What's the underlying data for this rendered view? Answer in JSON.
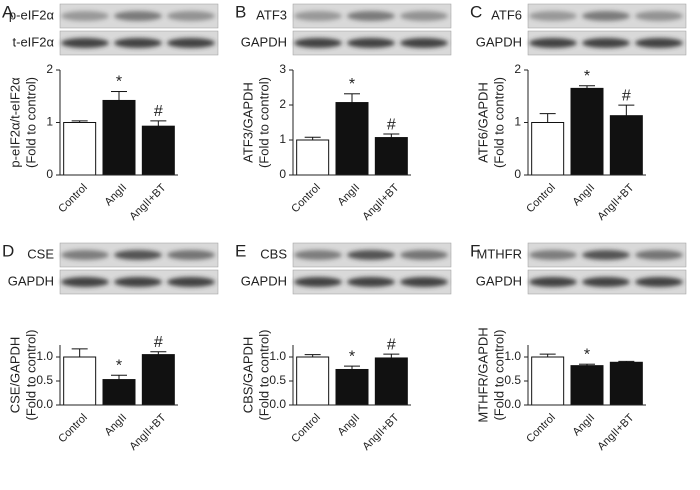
{
  "chart_data": [
    {
      "type": "bar",
      "panel": "A",
      "blot_labels": [
        "p-eIF2α",
        "t-eIF2α"
      ],
      "ylabel": [
        "p-eIF2α/t-eIF2α",
        "(Fold to control)"
      ],
      "categories": [
        "Control",
        "AngII",
        "AngII+BT"
      ],
      "values": [
        1.0,
        1.42,
        0.93
      ],
      "errors": [
        0.03,
        0.17,
        0.1
      ],
      "annotations": [
        null,
        "*",
        "#"
      ],
      "colors": [
        "#ffffff",
        "#111111",
        "#111111"
      ],
      "ylim": [
        0,
        2
      ],
      "yticks": [
        0,
        1,
        2
      ]
    },
    {
      "type": "bar",
      "panel": "B",
      "blot_labels": [
        "ATF3",
        "GAPDH"
      ],
      "ylabel": [
        "ATF3/GAPDH",
        "(Fold to control)"
      ],
      "categories": [
        "Control",
        "AngII",
        "AngII+BT"
      ],
      "values": [
        1.0,
        2.07,
        1.07
      ],
      "errors": [
        0.08,
        0.25,
        0.1
      ],
      "annotations": [
        null,
        "*",
        "#"
      ],
      "colors": [
        "#ffffff",
        "#111111",
        "#111111"
      ],
      "ylim": [
        0,
        3
      ],
      "yticks": [
        0,
        1,
        2,
        3
      ]
    },
    {
      "type": "bar",
      "panel": "C",
      "blot_labels": [
        "ATF6",
        "GAPDH"
      ],
      "ylabel": [
        "ATF6/GAPDH",
        "(Fold to control)"
      ],
      "categories": [
        "Control",
        "AngII",
        "AngII+BT"
      ],
      "values": [
        1.0,
        1.65,
        1.13
      ],
      "errors": [
        0.17,
        0.05,
        0.2
      ],
      "annotations": [
        null,
        "*",
        "#"
      ],
      "colors": [
        "#ffffff",
        "#111111",
        "#111111"
      ],
      "ylim": [
        0,
        2
      ],
      "yticks": [
        0,
        1,
        2
      ]
    },
    {
      "type": "bar",
      "panel": "D",
      "blot_labels": [
        "CSE",
        "GAPDH"
      ],
      "ylabel": [
        "CSE/GAPDH",
        "(Fold to control)"
      ],
      "categories": [
        "Control",
        "AngII",
        "AngII+BT"
      ],
      "values": [
        1.0,
        0.53,
        1.05
      ],
      "errors": [
        0.17,
        0.09,
        0.06
      ],
      "annotations": [
        null,
        "*",
        "#"
      ],
      "colors": [
        "#ffffff",
        "#111111",
        "#111111"
      ],
      "ylim": [
        0,
        1.25
      ],
      "yticks": [
        {
          "value": 0,
          "label": "0.0"
        },
        {
          "value": 0.5,
          "label": "0.5"
        },
        {
          "value": 1,
          "label": "1.0"
        }
      ]
    },
    {
      "type": "bar",
      "panel": "E",
      "blot_labels": [
        "CBS",
        "GAPDH"
      ],
      "ylabel": [
        "CBS/GAPDH",
        "(Fold to control)"
      ],
      "categories": [
        "Control",
        "AngII",
        "AngII+BT"
      ],
      "values": [
        1.0,
        0.74,
        0.98
      ],
      "errors": [
        0.05,
        0.07,
        0.08
      ],
      "annotations": [
        null,
        "*",
        "#"
      ],
      "colors": [
        "#ffffff",
        "#111111",
        "#111111"
      ],
      "ylim": [
        0,
        1.25
      ],
      "yticks": [
        {
          "value": 0,
          "label": "0.0"
        },
        {
          "value": 0.5,
          "label": "0.5"
        },
        {
          "value": 1,
          "label": "1.0"
        }
      ]
    },
    {
      "type": "bar",
      "panel": "F",
      "blot_labels": [
        "MTHFR",
        "GAPDH"
      ],
      "ylabel": [
        "MTHFR/GAPDH",
        "(Fold to control)"
      ],
      "categories": [
        "Control",
        "AngII",
        "AngII+BT"
      ],
      "values": [
        1.0,
        0.82,
        0.89
      ],
      "errors": [
        0.06,
        0.03,
        0.02
      ],
      "annotations": [
        null,
        "*",
        null
      ],
      "colors": [
        "#ffffff",
        "#111111",
        "#111111"
      ],
      "ylim": [
        0,
        1.25
      ],
      "yticks": [
        {
          "value": 0,
          "label": "0.0"
        },
        {
          "value": 0.5,
          "label": "0.5"
        },
        {
          "value": 1,
          "label": "1.0"
        }
      ]
    }
  ]
}
